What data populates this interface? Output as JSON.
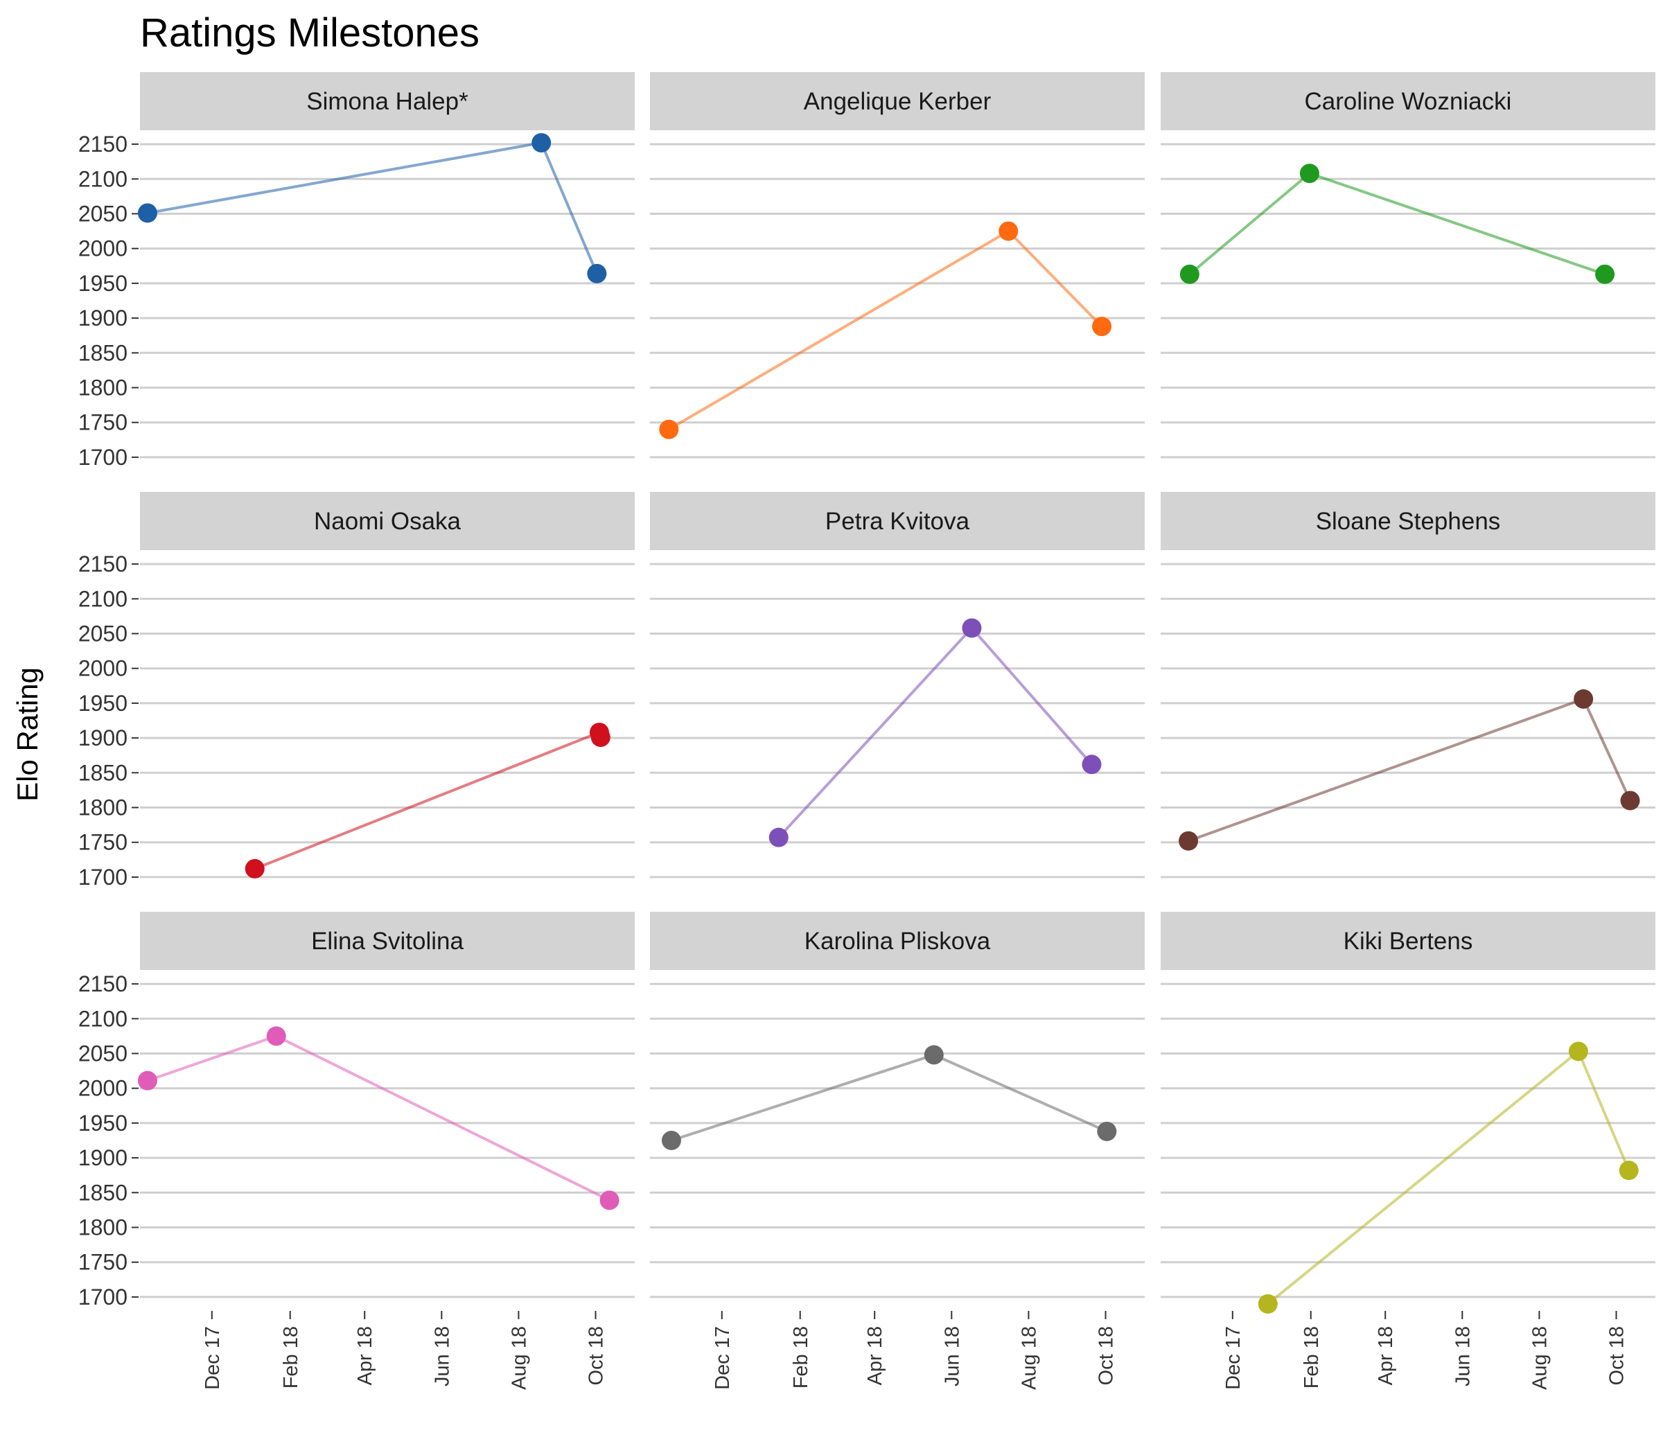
{
  "chart_data": {
    "type": "line",
    "title": "Ratings Milestones",
    "xlabel": "",
    "ylabel": "Elo Rating",
    "y_ticks": [
      1700,
      1750,
      1800,
      1850,
      1900,
      1950,
      2000,
      2050,
      2100,
      2150
    ],
    "ylim": [
      1680,
      2170
    ],
    "x_ticks": [
      "Dec 17",
      "Feb 18",
      "Apr 18",
      "Jun 18",
      "Aug 18",
      "Oct 18"
    ],
    "x_tick_dates": [
      "2017-12-01",
      "2018-02-01",
      "2018-04-01",
      "2018-06-01",
      "2018-08-01",
      "2018-10-01"
    ],
    "xlim": [
      "2017-10-05",
      "2018-11-01"
    ],
    "grid": "horizontal major lines only",
    "legend": "none",
    "facets": [
      {
        "name": "Simona Halep*",
        "color": "#1f5fa6",
        "points": [
          {
            "x": "2017-10-11",
            "y": 2051
          },
          {
            "x": "2018-08-19",
            "y": 2152
          },
          {
            "x": "2018-10-02",
            "y": 1964
          }
        ]
      },
      {
        "name": "Angelique Kerber",
        "color": "#ff6a10",
        "points": [
          {
            "x": "2017-10-20",
            "y": 1740
          },
          {
            "x": "2018-07-16",
            "y": 2025
          },
          {
            "x": "2018-09-28",
            "y": 1888
          }
        ]
      },
      {
        "name": "Caroline Wozniacki",
        "color": "#1f9a1f",
        "points": [
          {
            "x": "2017-10-28",
            "y": 1963
          },
          {
            "x": "2018-01-31",
            "y": 2108
          },
          {
            "x": "2018-09-22",
            "y": 1963
          }
        ]
      },
      {
        "name": "Naomi Osaka",
        "color": "#d0101c",
        "points": [
          {
            "x": "2018-01-04",
            "y": 1712
          },
          {
            "x": "2018-10-04",
            "y": 1908
          },
          {
            "x": "2018-10-05",
            "y": 1901
          }
        ]
      },
      {
        "name": "Petra Kvitova",
        "color": "#7d4fb8",
        "points": [
          {
            "x": "2018-01-15",
            "y": 1757
          },
          {
            "x": "2018-06-17",
            "y": 2058
          },
          {
            "x": "2018-09-20",
            "y": 1862
          }
        ]
      },
      {
        "name": "Sloane Stephens",
        "color": "#6d3a32",
        "points": [
          {
            "x": "2017-10-27",
            "y": 1752
          },
          {
            "x": "2018-09-05",
            "y": 1956
          },
          {
            "x": "2018-10-12",
            "y": 1810
          }
        ]
      },
      {
        "name": "Elina Svitolina",
        "color": "#e05cb8",
        "points": [
          {
            "x": "2017-10-11",
            "y": 2011
          },
          {
            "x": "2018-01-21",
            "y": 2075
          },
          {
            "x": "2018-10-12",
            "y": 1839
          }
        ]
      },
      {
        "name": "Karolina Pliskova",
        "color": "#6b6b6b",
        "points": [
          {
            "x": "2017-10-22",
            "y": 1925
          },
          {
            "x": "2018-05-18",
            "y": 2048
          },
          {
            "x": "2018-10-02",
            "y": 1938
          }
        ]
      },
      {
        "name": "Kiki Bertens",
        "color": "#b5b51f",
        "points": [
          {
            "x": "2017-12-29",
            "y": 1690
          },
          {
            "x": "2018-09-01",
            "y": 2053
          },
          {
            "x": "2018-10-11",
            "y": 1882
          }
        ]
      }
    ]
  }
}
